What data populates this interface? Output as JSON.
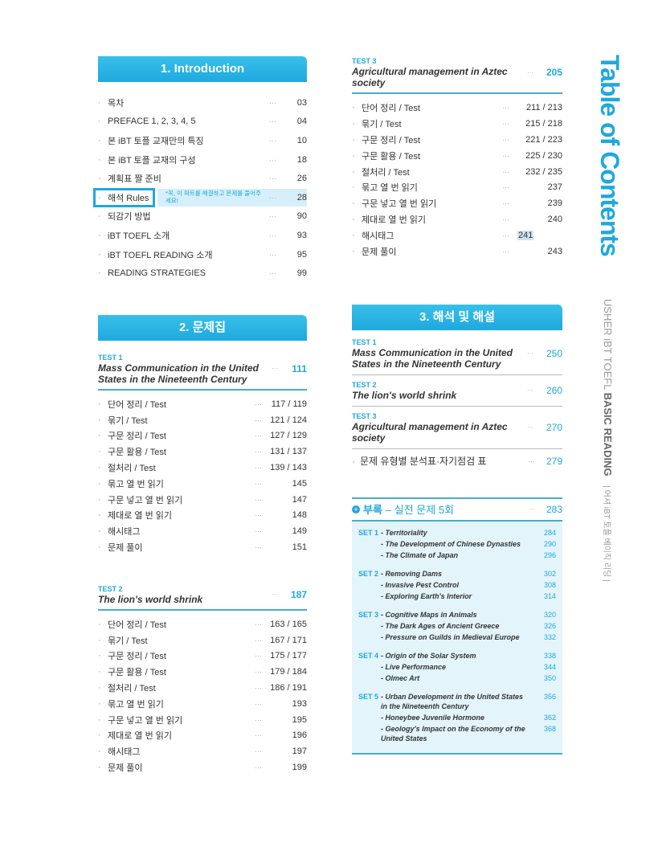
{
  "side_title": "Table of Contents",
  "spine": {
    "en_light": "USHER iBT TOEFL",
    "en_bold": "BASIC READING",
    "ko": "| 어셔 iBT 토플 베이직 리딩 |"
  },
  "intro": {
    "title": "1. Introduction",
    "callout": "*꼭, 이 파트를 해결하고 문제를 풀어주세요!",
    "items": [
      {
        "label": "목차",
        "page": "03"
      },
      {
        "label": "PREFACE 1, 2, 3, 4, 5",
        "page": "04"
      },
      {
        "label": "본 iBT 토플 교재만의 특징",
        "page": "10"
      },
      {
        "label": "본 iBT 토플 교재의 구성",
        "page": "18"
      },
      {
        "label": "계획표 짤 준비",
        "page": "26"
      },
      {
        "label": "해석 Rules",
        "page": "28"
      },
      {
        "label": "되감기 방법",
        "page": "90"
      },
      {
        "label": "iBT TOEFL 소개",
        "page": "93"
      },
      {
        "label": "iBT TOEFL READING 소개",
        "page": "95"
      },
      {
        "label": "READING STRATEGIES",
        "page": "99"
      }
    ]
  },
  "problems": {
    "title": "2. 문제집",
    "tests": [
      {
        "label": "TEST 1",
        "title": "Mass Communication in the United States in the Nineteenth Century",
        "page": "111",
        "items": [
          {
            "label": "단어 정리 / Test",
            "page": "117 / 119"
          },
          {
            "label": "묶기 / Test",
            "page": "121 / 124"
          },
          {
            "label": "구문 정리 / Test",
            "page": "127 / 129"
          },
          {
            "label": "구문 활용 / Test",
            "page": "131 / 137"
          },
          {
            "label": "절처리 / Test",
            "page": "139 / 143"
          },
          {
            "label": "묶고 열 번 읽기",
            "page": "145"
          },
          {
            "label": "구문 넣고 열 번 읽기",
            "page": "147"
          },
          {
            "label": "제대로 열 번 읽기",
            "page": "148"
          },
          {
            "label": "해시태그",
            "page": "149"
          },
          {
            "label": "문제 풀이",
            "page": "151"
          }
        ]
      },
      {
        "label": "TEST 2",
        "title": "The lion's world shrink",
        "page": "187",
        "items": [
          {
            "label": "단어 정리 / Test",
            "page": "163 / 165"
          },
          {
            "label": "묶기 / Test",
            "page": "167 / 171"
          },
          {
            "label": "구문 정리 / Test",
            "page": "175 / 177"
          },
          {
            "label": "구문 활용 / Test",
            "page": "179 / 184"
          },
          {
            "label": "절처리 / Test",
            "page": "186 / 191"
          },
          {
            "label": "묶고 열 번 읽기",
            "page": "193"
          },
          {
            "label": "구문 넣고 열 번 읽기",
            "page": "195"
          },
          {
            "label": "제대로 열 번 읽기",
            "page": "196"
          },
          {
            "label": "해시태그",
            "page": "197"
          },
          {
            "label": "문제 풀이",
            "page": "199"
          }
        ]
      },
      {
        "label": "TEST 3",
        "title": "Agricultural management in Aztec society",
        "page": "205",
        "items": [
          {
            "label": "단어 정리 / Test",
            "page": "211 / 213"
          },
          {
            "label": "묶기 / Test",
            "page": "215 / 218"
          },
          {
            "label": "구문 정리 / Test",
            "page": "221 / 223"
          },
          {
            "label": "구문 활용 / Test",
            "page": "225 / 230"
          },
          {
            "label": "절처리 / Test",
            "page": "232 / 235"
          },
          {
            "label": "묶고 열 번 읽기",
            "page": "237"
          },
          {
            "label": "구문 넣고 열 번 읽기",
            "page": "239"
          },
          {
            "label": "제대로 열 번 읽기",
            "page": "240"
          },
          {
            "label": "해시태그",
            "page": "241"
          },
          {
            "label": "문제 풀이",
            "page": "243"
          }
        ]
      }
    ]
  },
  "answers": {
    "title": "3. 해석 및 해설",
    "tests": [
      {
        "label": "TEST 1",
        "title": "Mass Communication in the United States in the Nineteenth Century",
        "page": "250"
      },
      {
        "label": "TEST 2",
        "title": "The lion's world shrink",
        "page": "260"
      },
      {
        "label": "TEST 3",
        "title": "Agricultural management in Aztec society",
        "page": "270"
      }
    ],
    "extra": {
      "label": "문제 유형별 분석표·자기점검 표",
      "page": "279"
    }
  },
  "appendix": {
    "title_bold": "부록",
    "title_rest": "– 실전 문제 5회",
    "page": "283",
    "sets": [
      {
        "label": "SET 1",
        "items": [
          {
            "title": "Territoriality",
            "page": "284"
          },
          {
            "title": "The Development of Chinese Dynasties",
            "page": "290"
          },
          {
            "title": "The Climate of Japan",
            "page": "296"
          }
        ]
      },
      {
        "label": "SET 2",
        "items": [
          {
            "title": "Removing Dams",
            "page": "302"
          },
          {
            "title": "Invasive Pest Control",
            "page": "308"
          },
          {
            "title": "Exploring Earth's Interior",
            "page": "314"
          }
        ]
      },
      {
        "label": "SET 3",
        "items": [
          {
            "title": "Cognitive Maps in Animals",
            "page": "320"
          },
          {
            "title": "The Dark Ages of Ancient Greece",
            "page": "326"
          },
          {
            "title": "Pressure on Guilds in Medieval Europe",
            "page": "332"
          }
        ]
      },
      {
        "label": "SET 4",
        "items": [
          {
            "title": "Origin of the Solar System",
            "page": "338"
          },
          {
            "title": "Live Performance",
            "page": "344"
          },
          {
            "title": "Olmec Art",
            "page": "350"
          }
        ]
      },
      {
        "label": "SET 5",
        "items": [
          {
            "title": "Urban Development in the United States in the Nineteenth Century",
            "page": "356"
          },
          {
            "title": "Honeybee Juvenile Hormone",
            "page": "362"
          },
          {
            "title": "Geology's Impact on the Economy of the United States",
            "page": "368"
          }
        ]
      }
    ]
  },
  "colors": {
    "accent": "#1fa8de",
    "highlight_box": "#e3f4fb"
  }
}
